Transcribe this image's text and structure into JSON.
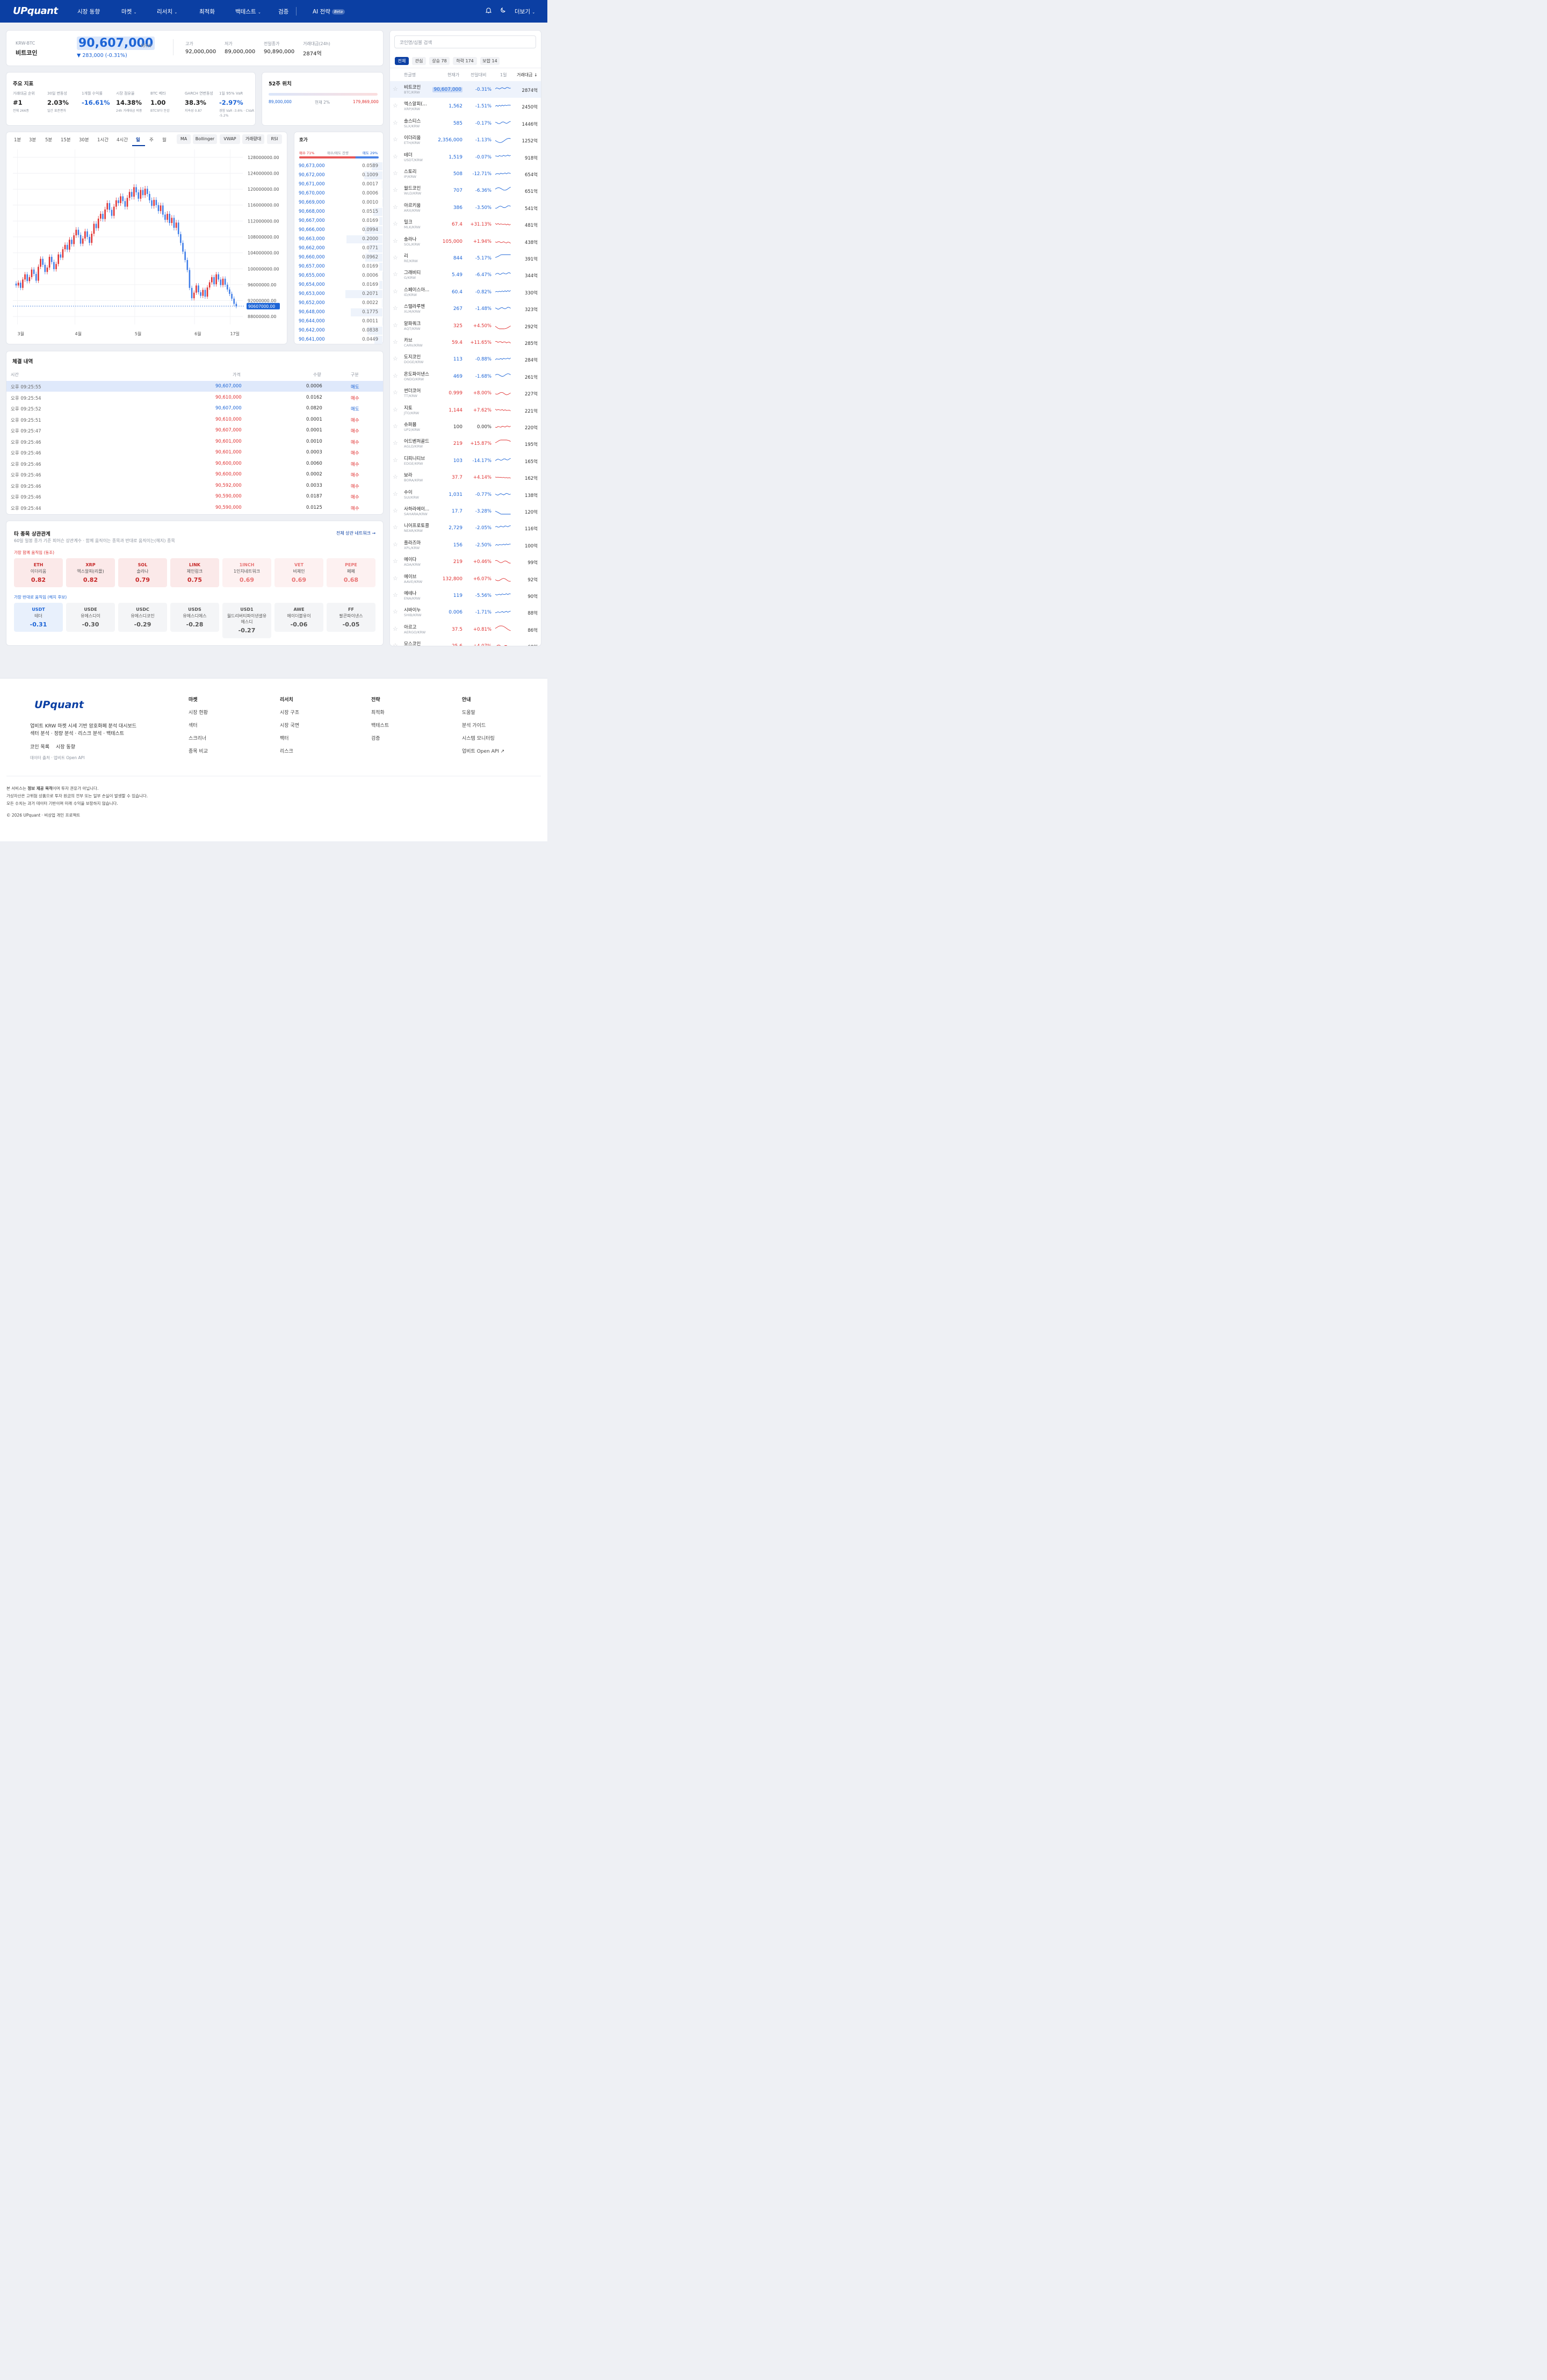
{
  "header": {
    "logo": "UPquant",
    "nav": [
      "시장 동향",
      "마켓",
      "리서치",
      "최적화",
      "백테스트",
      "검증",
      "AI 전략"
    ],
    "beta": "Beta",
    "more": "더보기"
  },
  "ticker": {
    "market": "KRW-BTC",
    "name": "비트코인",
    "price": "90,607,000",
    "unit": "KRW",
    "change": "▼ 283,000 (-0.31%)",
    "stats": [
      {
        "label": "고가",
        "value": "92,000,000"
      },
      {
        "label": "저가",
        "value": "89,000,000"
      },
      {
        "label": "전일종가",
        "value": "90,890,000"
      },
      {
        "label": "거래대금(24h)",
        "value": "2874억"
      }
    ]
  },
  "indicators": {
    "title": "주요 지표",
    "items": [
      {
        "label": "거래대금 순위",
        "value": "#1",
        "sub": "전체 266종"
      },
      {
        "label": "30일 변동성",
        "value": "2.03%",
        "sub": "일간 표준편차"
      },
      {
        "label": "1개월 수익률",
        "value": "-16.61%",
        "sub": ""
      },
      {
        "label": "시장 점유율",
        "value": "14.38%",
        "sub": "24h 거래대금 비중"
      },
      {
        "label": "BTC 베타",
        "value": "1.00",
        "sub": "BTC보다 둔감"
      },
      {
        "label": "GARCH 연변동성",
        "value": "38.3%",
        "sub": "지속성 0.87"
      },
      {
        "label": "1일 95% VaR",
        "value": "-2.97%",
        "sub": "경험 VaR -3.6% · CVaR -5.2%"
      }
    ]
  },
  "week52": {
    "title": "52주 위치",
    "low": "89,000,000",
    "current": "현재 2%",
    "high": "179,869,000",
    "position": 0.02
  },
  "chart_tabs": {
    "timeframes": [
      "1분",
      "3분",
      "5분",
      "15분",
      "30분",
      "1시간",
      "4시간",
      "일",
      "주",
      "월"
    ],
    "active": "일",
    "indicators": [
      "MA",
      "Bollinger",
      "VWAP",
      "거래량대",
      "RSI"
    ]
  },
  "chart_data": {
    "type": "candlestick",
    "y_ticks": [
      "128000000.00",
      "124000000.00",
      "120000000.00",
      "116000000.00",
      "112000000.00",
      "108000000.00",
      "104000000.00",
      "100000000.00",
      "96000000.00",
      "92000000.00",
      "88000000.00"
    ],
    "x_ticks": [
      "3월",
      "4월",
      "5월",
      "6월",
      "17일"
    ],
    "last_price_label": "90607000.00",
    "last_price": 90607000,
    "ylim": [
      86000000,
      130000000
    ],
    "closes": [
      95800000,
      96500000,
      95200000,
      97300000,
      98600000,
      96900000,
      97900000,
      99800000,
      98700000,
      97000000,
      100500000,
      102500000,
      101000000,
      99200000,
      100300000,
      103000000,
      101700000,
      99900000,
      101200000,
      103600000,
      102800000,
      104900000,
      106000000,
      104800000,
      107300000,
      106200000,
      108400000,
      109800000,
      108500000,
      106300000,
      107600000,
      109400000,
      108000000,
      106500000,
      108800000,
      111300000,
      110200000,
      112600000,
      113800000,
      112500000,
      114900000,
      116500000,
      114800000,
      113300000,
      115600000,
      117200000,
      116500000,
      118200000,
      117000000,
      115600000,
      117800000,
      119300000,
      118100000,
      120500000,
      119200000,
      117600000,
      119800000,
      118500000,
      120100000,
      118800000,
      117200000,
      115800000,
      117300000,
      116000000,
      114500000,
      115900000,
      113600000,
      112300000,
      113800000,
      111500000,
      112800000,
      110300000,
      111600000,
      108700000,
      106500000,
      104300000,
      102200000,
      99700000,
      95200000,
      92600000,
      94000000,
      95800000,
      94100000,
      93200000,
      94700000,
      93000000,
      95300000,
      96600000,
      97900000,
      96100000,
      98600000,
      97300000,
      95900000,
      97500000,
      96000000,
      94800000,
      93700000,
      92500000,
      91200000,
      90607000
    ]
  },
  "orderbook": {
    "title": "호가",
    "bid_label": "매수 71%",
    "mid_label": "매수/매도 잔량",
    "ask_label": "매도 29%",
    "bid_ratio": 0.71,
    "rows": [
      {
        "p": "90,673,000",
        "q": "0.0589"
      },
      {
        "p": "90,672,000",
        "q": "0.1009"
      },
      {
        "p": "90,671,000",
        "q": "0.0017"
      },
      {
        "p": "90,670,000",
        "q": "0.0006"
      },
      {
        "p": "90,669,000",
        "q": "0.0010"
      },
      {
        "p": "90,668,000",
        "q": "0.0515"
      },
      {
        "p": "90,667,000",
        "q": "0.0169"
      },
      {
        "p": "90,666,000",
        "q": "0.0994"
      },
      {
        "p": "90,663,000",
        "q": "0.2000"
      },
      {
        "p": "90,662,000",
        "q": "0.0771"
      },
      {
        "p": "90,660,000",
        "q": "0.0962"
      },
      {
        "p": "90,657,000",
        "q": "0.0169"
      },
      {
        "p": "90,655,000",
        "q": "0.0006"
      },
      {
        "p": "90,654,000",
        "q": "0.0169"
      },
      {
        "p": "90,653,000",
        "q": "0.2071"
      },
      {
        "p": "90,652,000",
        "q": "0.0022"
      },
      {
        "p": "90,648,000",
        "q": "0.1775"
      },
      {
        "p": "90,644,000",
        "q": "0.0011"
      },
      {
        "p": "90,642,000",
        "q": "0.0838"
      },
      {
        "p": "90,641,000",
        "q": "0.0449"
      }
    ]
  },
  "trades": {
    "title": "체결 내역",
    "cols": [
      "시간",
      "가격",
      "수량",
      "구분"
    ],
    "rows": [
      {
        "t": "오후 09:25:55",
        "p": "90,607,000",
        "q": "0.0006",
        "s": "매도"
      },
      {
        "t": "오후 09:25:54",
        "p": "90,610,000",
        "q": "0.0162",
        "s": "매수"
      },
      {
        "t": "오후 09:25:52",
        "p": "90,607,000",
        "q": "0.0820",
        "s": "매도"
      },
      {
        "t": "오후 09:25:51",
        "p": "90,610,000",
        "q": "0.0001",
        "s": "매수"
      },
      {
        "t": "오후 09:25:47",
        "p": "90,607,000",
        "q": "0.0001",
        "s": "매수"
      },
      {
        "t": "오후 09:25:46",
        "p": "90,601,000",
        "q": "0.0010",
        "s": "매수"
      },
      {
        "t": "오후 09:25:46",
        "p": "90,601,000",
        "q": "0.0003",
        "s": "매수"
      },
      {
        "t": "오후 09:25:46",
        "p": "90,600,000",
        "q": "0.0060",
        "s": "매수"
      },
      {
        "t": "오후 09:25:46",
        "p": "90,600,000",
        "q": "0.0002",
        "s": "매수"
      },
      {
        "t": "오후 09:25:46",
        "p": "90,592,000",
        "q": "0.0033",
        "s": "매수"
      },
      {
        "t": "오후 09:25:46",
        "p": "90,590,000",
        "q": "0.0187",
        "s": "매수"
      },
      {
        "t": "오후 09:25:44",
        "p": "90,590,000",
        "q": "0.0125",
        "s": "매수"
      }
    ]
  },
  "correlation": {
    "title": "타 종목 상관관계",
    "subtitle": "60일 일봉 종가 기준 피어슨 상관계수 · 함께 움직이는 종목과 반대로 움직이는(헤지) 종목",
    "link": "전체 상관 네트워크 →",
    "pos_label": "가장 함께 움직임 (동조)",
    "neg_label": "가장 반대로 움직임 (헤지 후보)",
    "pos": [
      {
        "s": "ETH",
        "n": "이더리움",
        "v": "0.82"
      },
      {
        "s": "XRP",
        "n": "엑스알피(리플)",
        "v": "0.82"
      },
      {
        "s": "SOL",
        "n": "솔라나",
        "v": "0.79"
      },
      {
        "s": "LINK",
        "n": "체인링크",
        "v": "0.75"
      },
      {
        "s": "1INCH",
        "n": "1인치네트워크",
        "v": "0.69"
      },
      {
        "s": "VET",
        "n": "비체인",
        "v": "0.69"
      },
      {
        "s": "PEPE",
        "n": "페페",
        "v": "0.68"
      }
    ],
    "neg": [
      {
        "s": "USDT",
        "n": "테더",
        "v": "-0.31"
      },
      {
        "s": "USDE",
        "n": "유에스디이",
        "v": "-0.30"
      },
      {
        "s": "USDC",
        "n": "유에스디코인",
        "v": "-0.29"
      },
      {
        "s": "USDS",
        "n": "유에스디에스",
        "v": "-0.28"
      },
      {
        "s": "USD1",
        "n": "월드리버티파이낸셜유에스디",
        "v": "-0.27"
      },
      {
        "s": "AWE",
        "n": "에이더블유이",
        "v": "-0.06"
      },
      {
        "s": "FF",
        "n": "팔콘파이낸스",
        "v": "-0.05"
      }
    ]
  },
  "sidebar": {
    "search_placeholder": "코인명/심볼 검색",
    "filters": [
      "전체",
      "관심",
      "상승 78",
      "하락 174",
      "보합 14"
    ],
    "cols": [
      "한글명",
      "현재가",
      "전일대비",
      "1일",
      "거래대금 ↓"
    ],
    "coins": [
      {
        "n": "비트코인",
        "t": "BTC/KRW",
        "p": "90,607,000",
        "c": "-0.31%",
        "v": "2874억",
        "d": -1
      },
      {
        "n": "엑스알피(...",
        "t": "XRP/KRW",
        "p": "1,562",
        "c": "-1.51%",
        "v": "2450억",
        "d": -1
      },
      {
        "n": "솔스티스",
        "t": "SLX/KRW",
        "p": "585",
        "c": "-0.17%",
        "v": "1446억",
        "d": -1
      },
      {
        "n": "이더리움",
        "t": "ETH/KRW",
        "p": "2,356,000",
        "c": "-1.13%",
        "v": "1252억",
        "d": -1
      },
      {
        "n": "테더",
        "t": "USDT/KRW",
        "p": "1,519",
        "c": "-0.07%",
        "v": "918억",
        "d": -1
      },
      {
        "n": "스토리",
        "t": "IP/KRW",
        "p": "508",
        "c": "-12.71%",
        "v": "654억",
        "d": -1
      },
      {
        "n": "월드코인",
        "t": "WLD/KRW",
        "p": "707",
        "c": "-6.36%",
        "v": "651억",
        "d": -1
      },
      {
        "n": "아르키움",
        "t": "ARX/KRW",
        "p": "386",
        "c": "-3.50%",
        "v": "541억",
        "d": -1
      },
      {
        "n": "밀크",
        "t": "MLK/KRW",
        "p": "67.4",
        "c": "+31.13%",
        "v": "481억",
        "d": 1
      },
      {
        "n": "솔라나",
        "t": "SOL/KRW",
        "p": "105,000",
        "c": "+1.94%",
        "v": "438억",
        "d": 1
      },
      {
        "n": "리",
        "t": "RE/KRW",
        "p": "844",
        "c": "-5.17%",
        "v": "391억",
        "d": -1
      },
      {
        "n": "그래비티",
        "t": "G/KRW",
        "p": "5.49",
        "c": "-6.47%",
        "v": "344억",
        "d": -1
      },
      {
        "n": "스페이스아...",
        "t": "ID/KRW",
        "p": "60.4",
        "c": "-0.82%",
        "v": "330억",
        "d": -1
      },
      {
        "n": "스텔라루멘",
        "t": "XLM/KRW",
        "p": "267",
        "c": "-1.48%",
        "v": "323억",
        "d": -1
      },
      {
        "n": "알파쿼크",
        "t": "AQT/KRW",
        "p": "325",
        "c": "+4.50%",
        "v": "292억",
        "d": 1
      },
      {
        "n": "카브",
        "t": "CARV/KRW",
        "p": "59.4",
        "c": "+11.65%",
        "v": "285억",
        "d": 1
      },
      {
        "n": "도지코인",
        "t": "DOGE/KRW",
        "p": "113",
        "c": "-0.88%",
        "v": "284억",
        "d": -1
      },
      {
        "n": "온도파이낸스",
        "t": "ONDO/KRW",
        "p": "469",
        "c": "-1.68%",
        "v": "261억",
        "d": -1
      },
      {
        "n": "썬더코어",
        "t": "TT/KRW",
        "p": "0.999",
        "c": "+8.00%",
        "v": "227억",
        "d": 1
      },
      {
        "n": "지토",
        "t": "JTO/KRW",
        "p": "1,144",
        "c": "+7.62%",
        "v": "221억",
        "d": 1
      },
      {
        "n": "슈퍼뮴",
        "t": "UP2/KRW",
        "p": "100",
        "c": "0.00%",
        "v": "220억",
        "d": 0
      },
      {
        "n": "어드벤처골드",
        "t": "AGLD/KRW",
        "p": "219",
        "c": "+15.87%",
        "v": "195억",
        "d": 1
      },
      {
        "n": "디피니티브",
        "t": "EDGE/KRW",
        "p": "103",
        "c": "-14.17%",
        "v": "165억",
        "d": -1
      },
      {
        "n": "보라",
        "t": "BORA/KRW",
        "p": "37.7",
        "c": "+4.14%",
        "v": "162억",
        "d": 1
      },
      {
        "n": "수이",
        "t": "SUI/KRW",
        "p": "1,031",
        "c": "-0.77%",
        "v": "138억",
        "d": -1
      },
      {
        "n": "사하라에이...",
        "t": "SAHARA/KRW",
        "p": "17.7",
        "c": "-3.28%",
        "v": "120억",
        "d": -1
      },
      {
        "n": "니어프로토콜",
        "t": "NEAR/KRW",
        "p": "2,729",
        "c": "-2.05%",
        "v": "116억",
        "d": -1
      },
      {
        "n": "플라즈마",
        "t": "XPL/KRW",
        "p": "156",
        "c": "-2.50%",
        "v": "100억",
        "d": -1
      },
      {
        "n": "에이다",
        "t": "ADA/KRW",
        "p": "219",
        "c": "+0.46%",
        "v": "99억",
        "d": 1
      },
      {
        "n": "에이브",
        "t": "AAVE/KRW",
        "p": "132,800",
        "c": "+6.07%",
        "v": "92억",
        "d": 1
      },
      {
        "n": "에테나",
        "t": "ENA/KRW",
        "p": "119",
        "c": "-5.56%",
        "v": "90억",
        "d": -1
      },
      {
        "n": "시바이누",
        "t": "SHIB/KRW",
        "p": "0.006",
        "c": "-1.71%",
        "v": "88억",
        "d": -1
      },
      {
        "n": "아르고",
        "t": "AERGO/KRW",
        "p": "37.5",
        "c": "+0.81%",
        "v": "86억",
        "d": 1
      },
      {
        "n": "모스코인",
        "t": "",
        "p": "25.6",
        "c": "+4.07%",
        "v": "68억",
        "d": 1
      }
    ]
  },
  "footer": {
    "logo": "UPquant",
    "desc1": "업비트 KRW 마켓 시세 기반 암호화폐 분석 대시보드",
    "desc2": "섹터 분석 · 정량 분석 · 리스크 분석 · 백테스트",
    "links": [
      "코인 목록",
      "시장 동향"
    ],
    "source": "데이터 출처 · 업비트 Open API",
    "cols": [
      {
        "h": "마켓",
        "items": [
          "시장 현황",
          "섹터",
          "스크리너",
          "종목 비교"
        ]
      },
      {
        "h": "리서치",
        "items": [
          "시장 구조",
          "시장 국면",
          "팩터",
          "리스크"
        ]
      },
      {
        "h": "전략",
        "items": [
          "최적화",
          "백테스트",
          "검증"
        ]
      },
      {
        "h": "안내",
        "items": [
          "도움말",
          "분석 가이드",
          "시스템 모니터링",
          "업비트 Open API ↗"
        ]
      }
    ],
    "disc_pre": "본 서비스는 ",
    "disc_bold": "정보 제공 목적",
    "disc_post": "이며 투자 권유가 아닙니다.",
    "disc2": "가상자산은 고위험 상품으로 투자 원금의 전부 또는 일부 손실이 발생할 수 있습니다.",
    "disc3": "모든 수치는 과거 데이터 기반이며 미래 수익을 보장하지 않습니다.",
    "copy": "© 2026 UPquant · 비상업 개인 프로젝트"
  },
  "colors": {
    "up": "#e03131",
    "down": "#1c64d6",
    "brand": "#0b3fa3"
  }
}
